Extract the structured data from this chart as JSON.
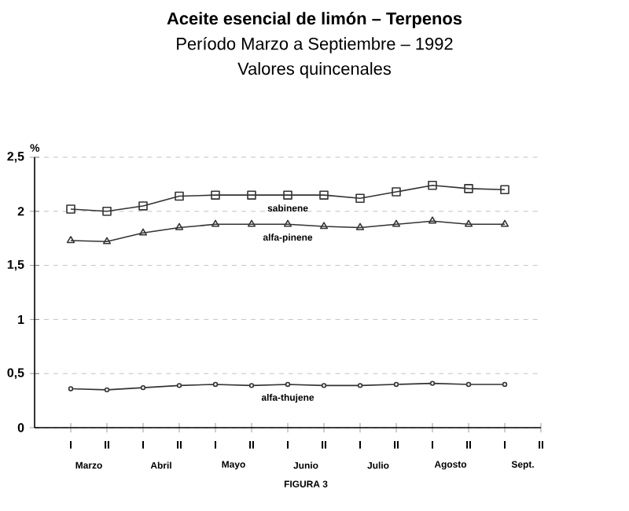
{
  "chart_data": {
    "type": "line",
    "title": "Aceite esencial de limón – Terpenos",
    "subtitle": "Período Marzo a Septiembre – 1992",
    "annotations": [
      "Valores quincenales",
      "Marzo",
      "Abril",
      "Mayo",
      "Junio",
      "Julio",
      "Agosto",
      "Sept.",
      "FIGURA 3"
    ],
    "ylabel": "%",
    "categories": [
      "I",
      "II",
      "I",
      "II",
      "I",
      "II",
      "I",
      "II",
      "I",
      "II",
      "I",
      "II",
      "I",
      "II"
    ],
    "series": [
      {
        "name": "sabinene",
        "color": "#333333",
        "marker": "square",
        "values": [
          2.02,
          2.0,
          2.05,
          2.14,
          2.15,
          2.15,
          2.15,
          2.15,
          2.12,
          2.18,
          2.24,
          2.21,
          2.2,
          null
        ]
      },
      {
        "name": "alfa-pinene",
        "color": "#333333",
        "marker": "triangle",
        "values": [
          1.73,
          1.72,
          1.8,
          1.85,
          1.88,
          1.88,
          1.88,
          1.86,
          1.85,
          1.88,
          1.91,
          1.88,
          1.88,
          null
        ]
      },
      {
        "name": "alfa-thujene",
        "color": "#333333",
        "marker": "circle",
        "values": [
          0.36,
          0.35,
          0.37,
          0.39,
          0.4,
          0.39,
          0.4,
          0.39,
          0.39,
          0.4,
          0.41,
          0.4,
          0.4,
          null
        ]
      }
    ],
    "ylim": [
      0,
      2.5
    ],
    "yticks": [
      0,
      {
        "value": 0.5,
        "label": "0,5"
      },
      1,
      {
        "value": 1.5,
        "label": "1,5"
      },
      2,
      {
        "value": 2.5,
        "label": "2,5"
      }
    ],
    "grid": "y"
  }
}
